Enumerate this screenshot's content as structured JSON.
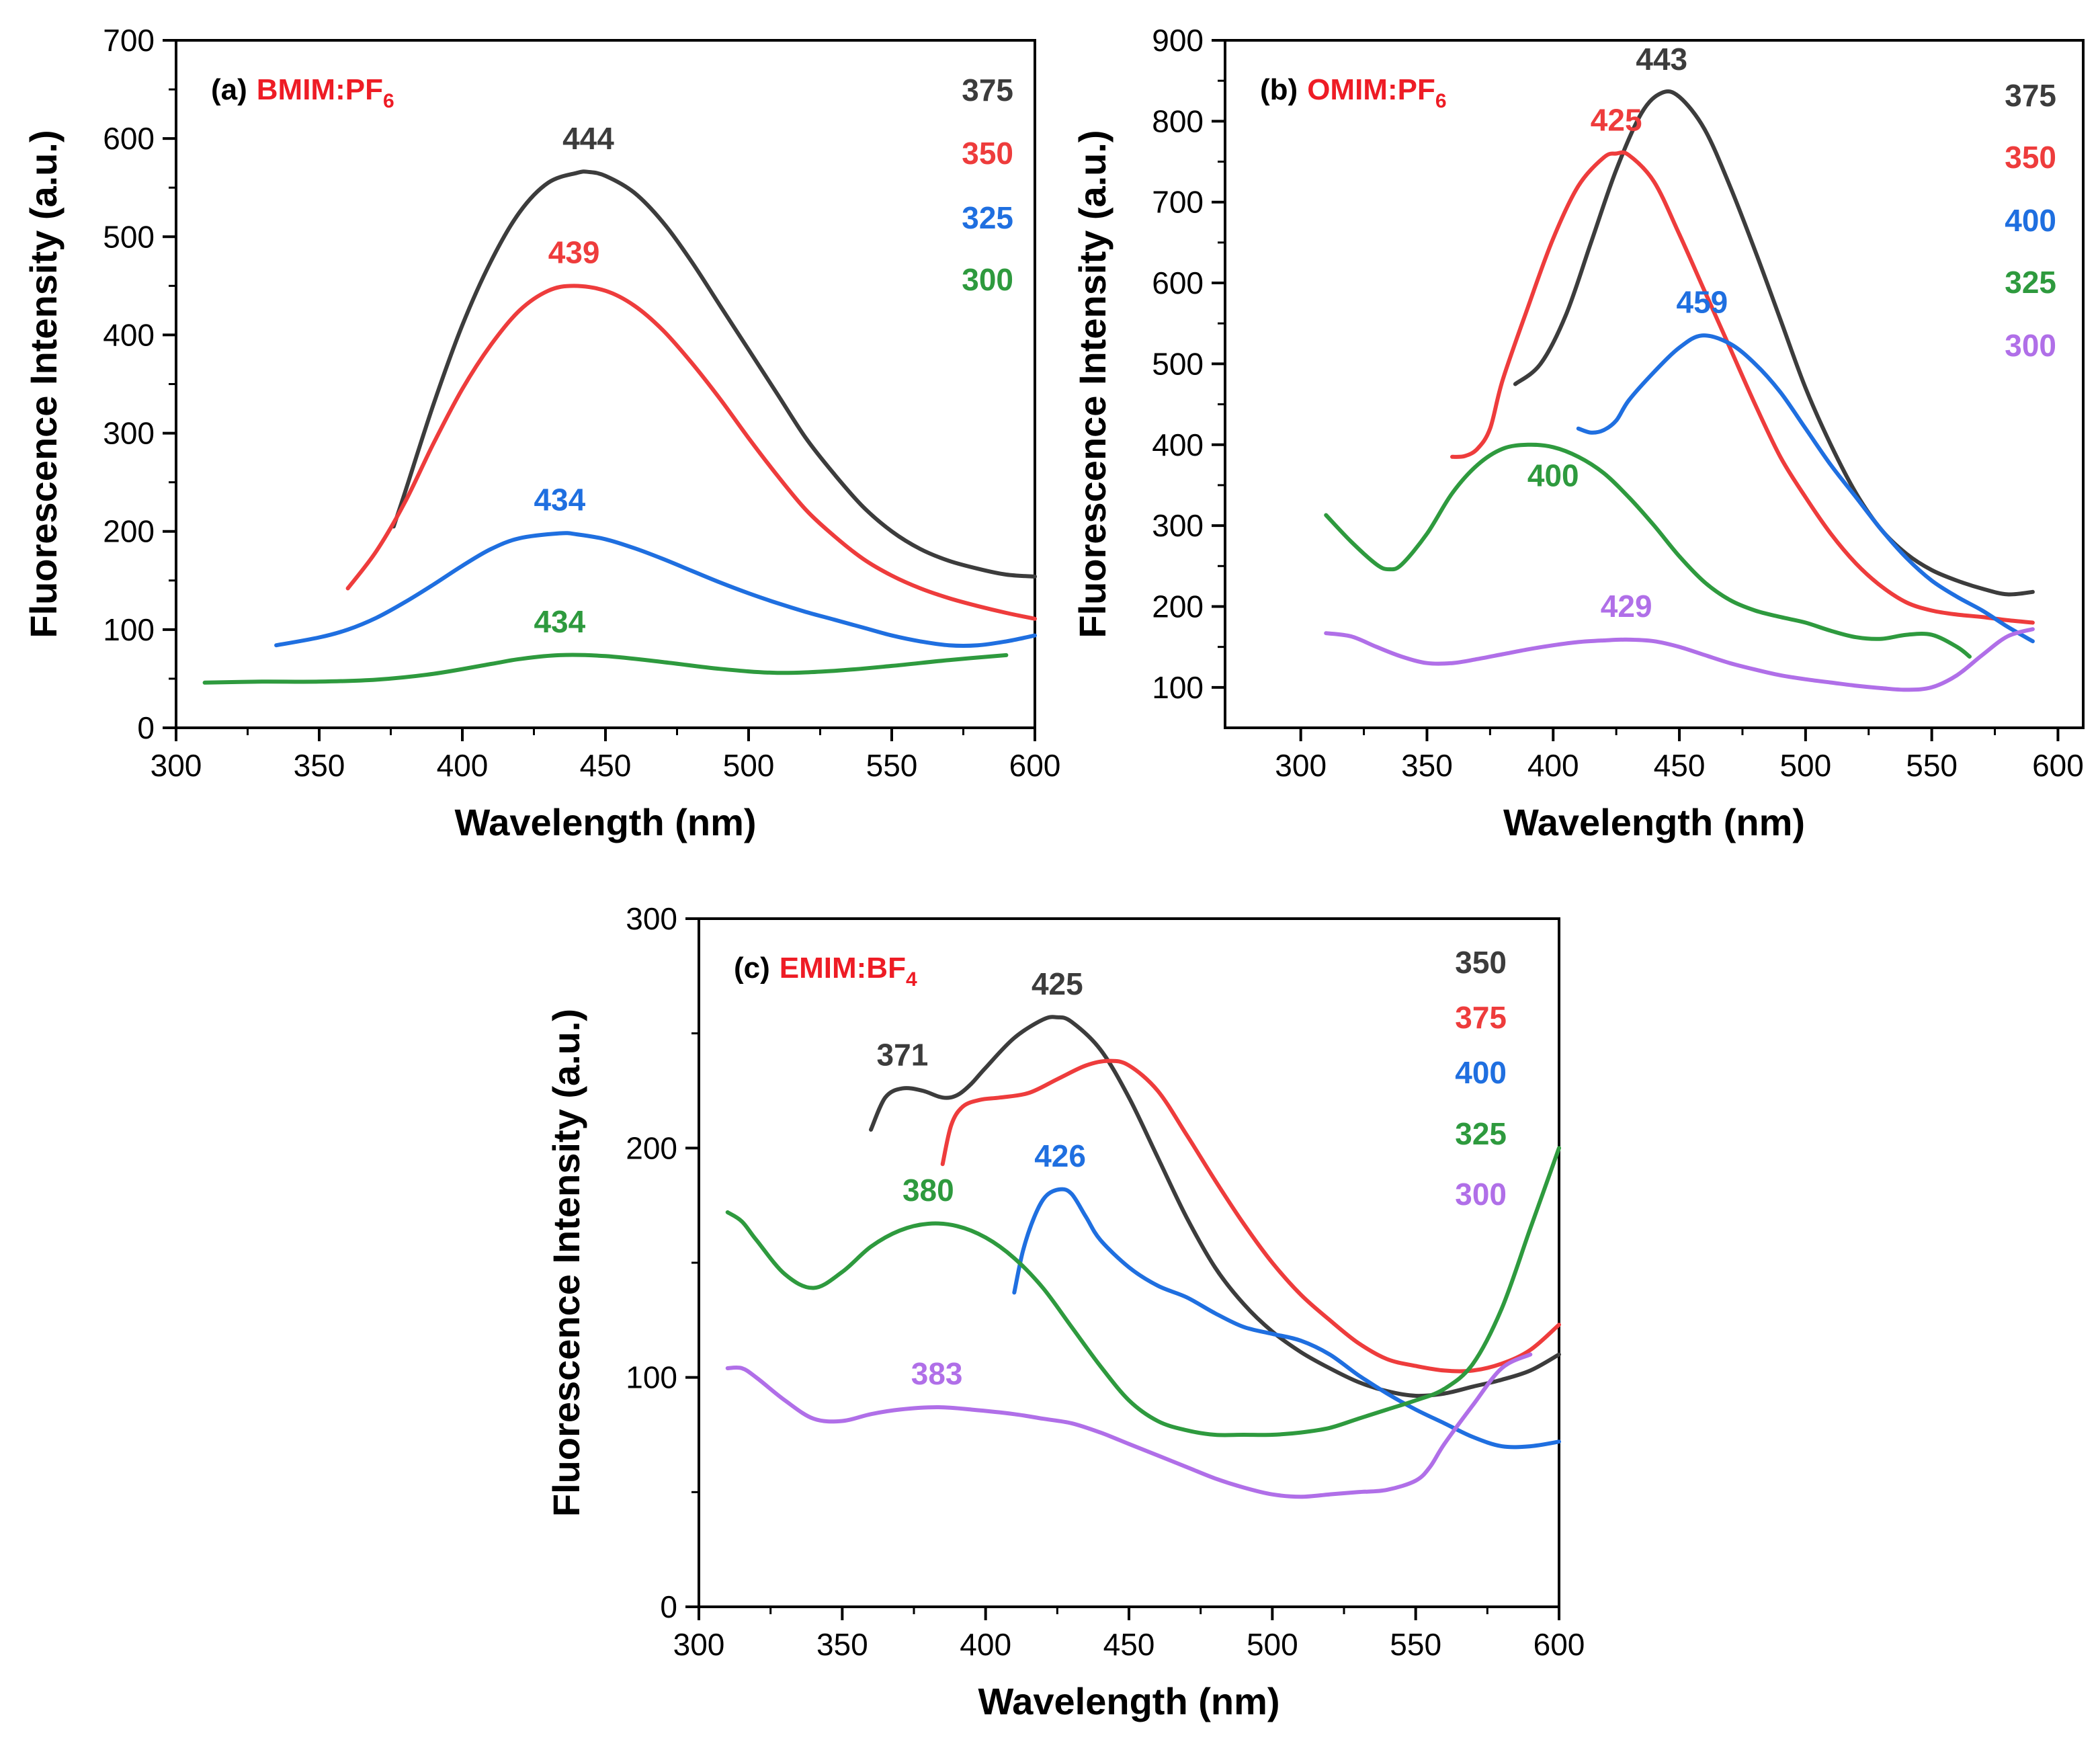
{
  "chart_data": [
    {
      "type": "line",
      "panel_label": "(a)",
      "ionic_liquid": "BMIM:PF",
      "ionic_liquid_subscript": "6",
      "title_color": "#ee1c25",
      "xlabel": "Wavelength (nm)",
      "ylabel": "Fluorescence Intensity (a.u.)",
      "xlim": [
        300,
        600
      ],
      "ylim": [
        0,
        700
      ],
      "xticks": [
        300,
        350,
        400,
        450,
        500,
        550,
        600
      ],
      "yticks": [
        0,
        100,
        200,
        300,
        400,
        500,
        600,
        700
      ],
      "legend_position": "top-right",
      "series": [
        {
          "name": "375",
          "color": "#3c3c3c",
          "x": [
            376,
            380,
            390,
            400,
            410,
            420,
            430,
            440,
            444,
            450,
            460,
            470,
            480,
            490,
            500,
            510,
            520,
            530,
            540,
            550,
            560,
            570,
            580,
            590,
            600
          ],
          "y": [
            205,
            240,
            330,
            410,
            475,
            525,
            555,
            565,
            566,
            562,
            545,
            515,
            475,
            430,
            385,
            340,
            295,
            258,
            225,
            200,
            182,
            170,
            162,
            156,
            154
          ],
          "peak": {
            "x": 444,
            "label": "444"
          }
        },
        {
          "name": "350",
          "color": "#ee3c3c",
          "x": [
            360,
            370,
            380,
            390,
            400,
            410,
            420,
            430,
            439,
            450,
            460,
            470,
            480,
            490,
            500,
            510,
            520,
            530,
            540,
            550,
            560,
            570,
            580,
            590,
            600
          ],
          "y": [
            142,
            180,
            230,
            290,
            345,
            390,
            425,
            445,
            450,
            445,
            430,
            405,
            372,
            335,
            295,
            257,
            222,
            195,
            172,
            155,
            142,
            132,
            124,
            117,
            111
          ],
          "peak": {
            "x": 439,
            "label": "439"
          }
        },
        {
          "name": "325",
          "color": "#1f6fe0",
          "x": [
            335,
            350,
            360,
            370,
            380,
            390,
            400,
            410,
            420,
            434,
            440,
            450,
            460,
            470,
            480,
            490,
            500,
            510,
            520,
            530,
            540,
            550,
            560,
            570,
            580,
            590,
            600
          ],
          "y": [
            84,
            92,
            100,
            112,
            128,
            146,
            165,
            182,
            193,
            198,
            197,
            192,
            183,
            172,
            160,
            148,
            137,
            127,
            118,
            110,
            102,
            94,
            88,
            84,
            84,
            88,
            94
          ],
          "peak": {
            "x": 434,
            "label": "434"
          }
        },
        {
          "name": "300",
          "color": "#2e9a3e",
          "x": [
            310,
            330,
            350,
            370,
            390,
            410,
            420,
            434,
            450,
            470,
            490,
            510,
            530,
            550,
            570,
            590
          ],
          "y": [
            46,
            47,
            47,
            49,
            55,
            65,
            70,
            74,
            73,
            67,
            60,
            56,
            58,
            63,
            69,
            74
          ],
          "peak": {
            "x": 434,
            "label": "434"
          }
        }
      ]
    },
    {
      "type": "line",
      "panel_label": "(b)",
      "ionic_liquid": "OMIM:PF",
      "ionic_liquid_subscript": "6",
      "title_color": "#ee1c25",
      "xlabel": "Wavelength (nm)",
      "ylabel": "Fluorescence Intensity (a.u.)",
      "xlim": [
        270,
        610
      ],
      "ylim": [
        50,
        900
      ],
      "xticks": [
        300,
        350,
        400,
        450,
        500,
        550,
        600
      ],
      "yticks": [
        100,
        200,
        300,
        400,
        500,
        600,
        700,
        800,
        900
      ],
      "legend_position": "top-right",
      "series": [
        {
          "name": "375",
          "color": "#3c3c3c",
          "x": [
            385,
            395,
            405,
            415,
            425,
            435,
            443,
            450,
            460,
            470,
            480,
            490,
            500,
            510,
            520,
            530,
            540,
            550,
            560,
            570,
            580,
            590
          ],
          "y": [
            475,
            500,
            560,
            650,
            740,
            810,
            835,
            830,
            790,
            720,
            640,
            555,
            470,
            400,
            340,
            295,
            265,
            245,
            232,
            222,
            215,
            218
          ],
          "peak": {
            "x": 443,
            "label": "443"
          }
        },
        {
          "name": "350",
          "color": "#ee3c3c",
          "x": [
            360,
            365,
            370,
            375,
            380,
            390,
            400,
            410,
            420,
            425,
            430,
            440,
            450,
            460,
            470,
            480,
            490,
            500,
            510,
            520,
            530,
            540,
            550,
            560,
            570,
            580,
            590
          ],
          "y": [
            385,
            386,
            395,
            420,
            480,
            570,
            655,
            720,
            755,
            760,
            758,
            725,
            660,
            590,
            520,
            450,
            385,
            335,
            290,
            253,
            225,
            205,
            195,
            190,
            187,
            183,
            180
          ],
          "peak": {
            "x": 425,
            "label": "425"
          }
        },
        {
          "name": "400",
          "color": "#1f6fe0",
          "x": [
            410,
            415,
            420,
            425,
            430,
            440,
            450,
            459,
            470,
            480,
            490,
            500,
            510,
            520,
            530,
            540,
            550,
            560,
            570,
            580,
            590
          ],
          "y": [
            420,
            415,
            418,
            430,
            455,
            490,
            520,
            535,
            525,
            500,
            465,
            420,
            375,
            335,
            295,
            260,
            232,
            212,
            195,
            175,
            157
          ],
          "peak": {
            "x": 459,
            "label": "459"
          }
        },
        {
          "name": "325",
          "color": "#2e9a3e",
          "x": [
            310,
            320,
            330,
            335,
            340,
            350,
            360,
            370,
            380,
            390,
            400,
            410,
            420,
            430,
            440,
            450,
            460,
            470,
            480,
            490,
            500,
            510,
            520,
            530,
            540,
            550,
            560,
            565
          ],
          "y": [
            313,
            280,
            252,
            246,
            252,
            290,
            340,
            375,
            395,
            400,
            397,
            385,
            365,
            335,
            300,
            262,
            230,
            208,
            195,
            187,
            180,
            170,
            162,
            160,
            165,
            165,
            150,
            138
          ],
          "peak": {
            "x": 400,
            "label": "400"
          }
        },
        {
          "name": "300",
          "color": "#b06fe8",
          "x": [
            310,
            320,
            330,
            340,
            350,
            360,
            370,
            380,
            390,
            400,
            410,
            420,
            429,
            440,
            450,
            460,
            470,
            480,
            490,
            500,
            510,
            520,
            530,
            540,
            550,
            560,
            570,
            580,
            590
          ],
          "y": [
            167,
            163,
            150,
            138,
            130,
            130,
            135,
            141,
            147,
            152,
            156,
            158,
            159,
            157,
            150,
            140,
            130,
            122,
            115,
            110,
            106,
            102,
            99,
            97,
            100,
            115,
            140,
            163,
            172
          ],
          "peak": {
            "x": 429,
            "label": "429"
          }
        }
      ]
    },
    {
      "type": "line",
      "panel_label": "(c)",
      "ionic_liquid": "EMIM:BF",
      "ionic_liquid_subscript": "4",
      "title_color": "#ee1c25",
      "xlabel": "Wavelength (nm)",
      "ylabel": "Fluorescence Intensity (a.u.)",
      "xlim": [
        300,
        600
      ],
      "ylim": [
        0,
        300
      ],
      "xticks": [
        300,
        350,
        400,
        450,
        500,
        550,
        600
      ],
      "yticks": [
        0,
        100,
        200,
        300
      ],
      "legend_position": "top-right",
      "series": [
        {
          "name": "350",
          "color": "#3c3c3c",
          "x": [
            360,
            365,
            371,
            378,
            385,
            390,
            395,
            400,
            410,
            420,
            425,
            430,
            440,
            450,
            460,
            470,
            480,
            490,
            500,
            510,
            520,
            530,
            540,
            550,
            560,
            570,
            580,
            590,
            600
          ],
          "y": [
            208,
            222,
            226,
            225,
            222,
            223,
            228,
            235,
            248,
            256,
            257,
            255,
            243,
            222,
            196,
            170,
            148,
            132,
            120,
            111,
            104,
            98,
            94,
            92,
            93,
            96,
            99,
            103,
            110
          ],
          "peak": {
            "x": 371,
            "label": "371"
          },
          "peak2": {
            "x": 425,
            "label": "425"
          }
        },
        {
          "name": "375",
          "color": "#ee3c3c",
          "x": [
            385,
            388,
            392,
            398,
            405,
            415,
            425,
            435,
            443,
            450,
            460,
            470,
            480,
            490,
            500,
            510,
            520,
            530,
            540,
            550,
            560,
            570,
            580,
            590,
            600
          ],
          "y": [
            193,
            210,
            218,
            221,
            222,
            224,
            230,
            236,
            238,
            236,
            225,
            206,
            186,
            167,
            150,
            136,
            125,
            115,
            108,
            105,
            103,
            103,
            106,
            112,
            123
          ]
        },
        {
          "name": "400",
          "color": "#1f6fe0",
          "x": [
            410,
            413,
            417,
            421,
            426,
            430,
            435,
            440,
            450,
            460,
            470,
            480,
            490,
            500,
            510,
            520,
            530,
            540,
            550,
            560,
            570,
            580,
            590,
            600
          ],
          "y": [
            137,
            155,
            170,
            179,
            182,
            180,
            170,
            160,
            148,
            140,
            135,
            128,
            122,
            119,
            116,
            110,
            101,
            93,
            86,
            80,
            74,
            70,
            70,
            72
          ],
          "peak": {
            "x": 426,
            "label": "426"
          }
        },
        {
          "name": "325",
          "color": "#2e9a3e",
          "x": [
            310,
            315,
            320,
            330,
            340,
            350,
            360,
            370,
            380,
            390,
            400,
            410,
            420,
            430,
            440,
            450,
            460,
            470,
            480,
            490,
            500,
            510,
            520,
            530,
            540,
            550,
            560,
            570,
            580,
            590,
            600
          ],
          "y": [
            172,
            168,
            160,
            145,
            139,
            146,
            157,
            164,
            167,
            166,
            161,
            152,
            139,
            122,
            105,
            90,
            81,
            77,
            75,
            75,
            75,
            76,
            78,
            82,
            86,
            90,
            95,
            106,
            130,
            165,
            200
          ],
          "peak": {
            "x": 380,
            "label": "380"
          }
        },
        {
          "name": "300",
          "color": "#b06fe8",
          "x": [
            310,
            315,
            320,
            330,
            340,
            350,
            360,
            370,
            383,
            395,
            410,
            420,
            430,
            440,
            450,
            460,
            470,
            480,
            490,
            500,
            510,
            520,
            530,
            540,
            550,
            555,
            560,
            570,
            580,
            590
          ],
          "y": [
            104,
            104,
            100,
            90,
            82,
            81,
            84,
            86,
            87,
            86,
            84,
            82,
            80,
            76,
            71,
            66,
            61,
            56,
            52,
            49,
            48,
            49,
            50,
            51,
            55,
            61,
            71,
            88,
            104,
            110
          ],
          "peak": {
            "x": 383,
            "label": "383"
          }
        }
      ]
    }
  ]
}
